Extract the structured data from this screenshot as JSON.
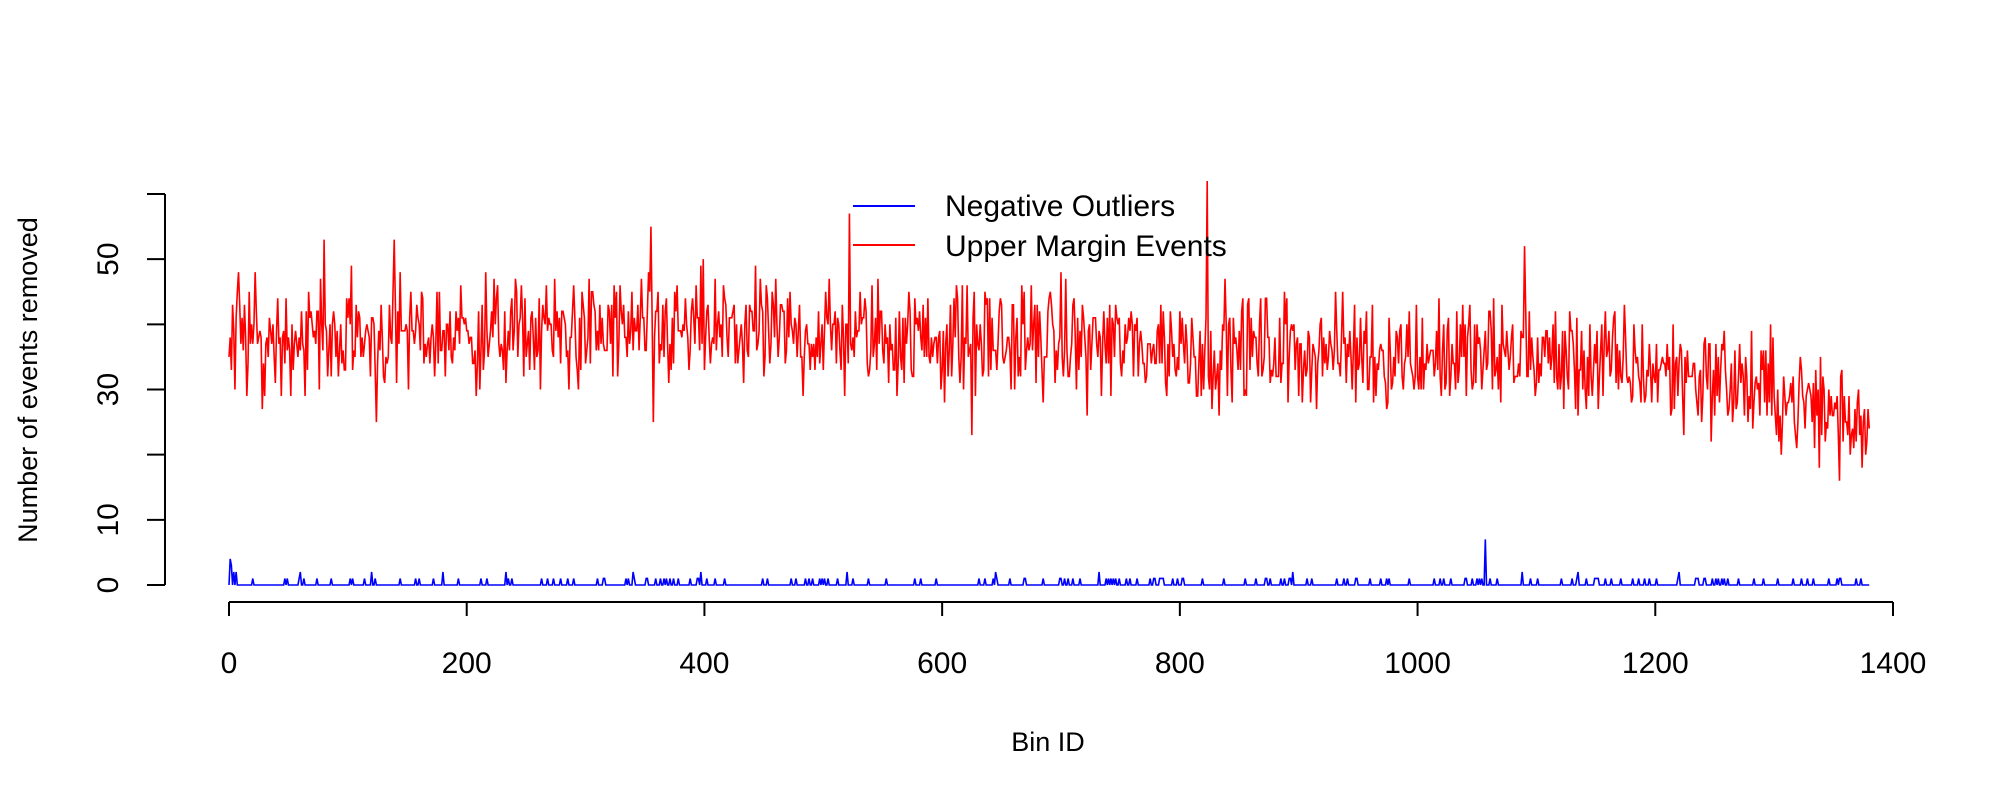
{
  "chart_data": {
    "type": "line",
    "title": "",
    "xlabel": "Bin ID",
    "ylabel": "Number of events removed",
    "xlim": [
      -65,
      1400
    ],
    "ylim": [
      -2,
      62
    ],
    "x_ticks": [
      0,
      200,
      400,
      600,
      800,
      1000,
      1200,
      1400
    ],
    "y_ticks": [
      0,
      10,
      30,
      50
    ],
    "y_axis_range": [
      0,
      60
    ],
    "x_axis_range": [
      0,
      1400
    ],
    "grid": false,
    "legend_position": "top-center",
    "n_bins": 1380,
    "series": [
      {
        "name": "Negative Outliers",
        "color": "#0000FF",
        "baseline": 0,
        "typical_spike_height": 1,
        "spike_probability": 0.12,
        "peaks": [
          {
            "x": 1,
            "y": 4
          },
          {
            "x": 2,
            "y": 3
          },
          {
            "x": 4,
            "y": 2
          },
          {
            "x": 6,
            "y": 2
          },
          {
            "x": 60,
            "y": 2
          },
          {
            "x": 120,
            "y": 2
          },
          {
            "x": 180,
            "y": 2
          },
          {
            "x": 233,
            "y": 2
          },
          {
            "x": 340,
            "y": 2
          },
          {
            "x": 397,
            "y": 2
          },
          {
            "x": 520,
            "y": 2
          },
          {
            "x": 645,
            "y": 2
          },
          {
            "x": 732,
            "y": 2
          },
          {
            "x": 895,
            "y": 2
          },
          {
            "x": 1057,
            "y": 7
          },
          {
            "x": 1088,
            "y": 2
          },
          {
            "x": 1135,
            "y": 2
          },
          {
            "x": 1220,
            "y": 2
          }
        ]
      },
      {
        "name": "Upper Margin Events",
        "color": "#FF0000",
        "trend": [
          {
            "x": 0,
            "y": 38
          },
          {
            "x": 400,
            "y": 39
          },
          {
            "x": 900,
            "y": 36
          },
          {
            "x": 1100,
            "y": 35
          },
          {
            "x": 1250,
            "y": 32
          },
          {
            "x": 1380,
            "y": 25
          }
        ],
        "noise_amplitude": 6,
        "peaks": [
          {
            "x": 0,
            "y": 35
          },
          {
            "x": 5,
            "y": 30
          },
          {
            "x": 8,
            "y": 48
          },
          {
            "x": 28,
            "y": 27
          },
          {
            "x": 80,
            "y": 53
          },
          {
            "x": 124,
            "y": 25
          },
          {
            "x": 139,
            "y": 53
          },
          {
            "x": 355,
            "y": 55
          },
          {
            "x": 357,
            "y": 25
          },
          {
            "x": 522,
            "y": 57
          },
          {
            "x": 625,
            "y": 23
          },
          {
            "x": 823,
            "y": 62
          },
          {
            "x": 825,
            "y": 30
          },
          {
            "x": 1090,
            "y": 52
          },
          {
            "x": 1355,
            "y": 16
          },
          {
            "x": 1380,
            "y": 24
          }
        ]
      }
    ]
  }
}
